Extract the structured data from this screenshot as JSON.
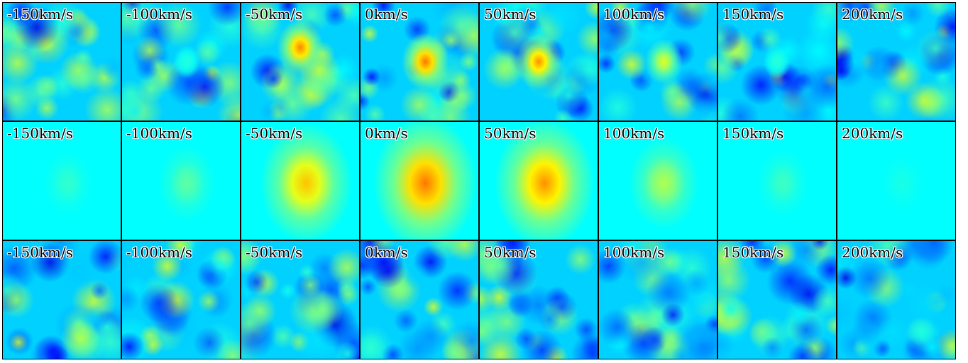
{
  "rows": [
    {
      "panels": [
        {
          "label": "-150km/s"
        },
        {
          "label": "-100km/s"
        },
        {
          "label": "-50km/s"
        },
        {
          "label": "0km/s"
        },
        {
          "label": "50km/s"
        },
        {
          "label": "100km/s"
        },
        {
          "label": "150km/s"
        },
        {
          "label": "200km/s"
        }
      ]
    },
    {
      "panels": [
        {
          "label": "-150km/s"
        },
        {
          "label": "-100km/s"
        },
        {
          "label": "-50km/s"
        },
        {
          "label": "0km/s"
        },
        {
          "label": "50km/s"
        },
        {
          "label": "100km/s"
        },
        {
          "label": "150km/s"
        },
        {
          "label": "200km/s"
        }
      ]
    },
    {
      "panels": [
        {
          "label": "-150km/s"
        },
        {
          "label": "-100km/s"
        },
        {
          "label": "-50km/s"
        },
        {
          "label": "0km/s"
        },
        {
          "label": "50km/s"
        },
        {
          "label": "100km/s"
        },
        {
          "label": "150km/s"
        },
        {
          "label": "200km/s"
        }
      ]
    }
  ]
}
